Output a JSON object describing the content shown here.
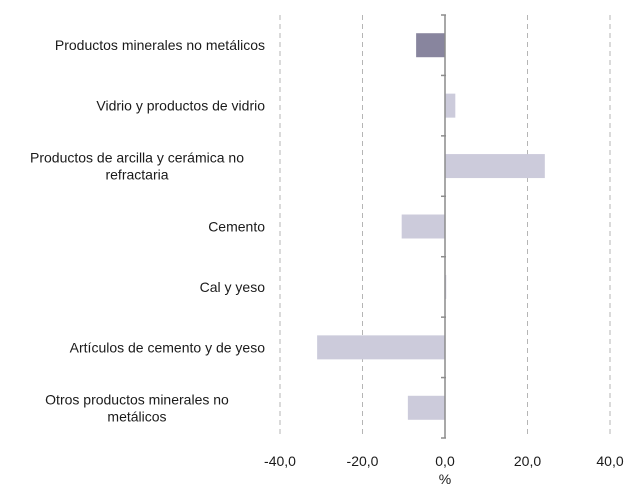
{
  "chart_data": {
    "type": "bar",
    "orientation": "horizontal",
    "categories": [
      "Productos minerales no metálicos",
      "Vidrio y productos de vidrio",
      "Productos de arcilla y cerámica no refractaria",
      "Cemento",
      "Cal y yeso",
      "Artículos de cemento y de yeso",
      "Otros productos minerales no metálicos"
    ],
    "category_lines": [
      [
        "Productos minerales no metálicos"
      ],
      [
        "Vidrio y productos de vidrio"
      ],
      [
        "Productos de arcilla y cerámica no",
        "refractaria"
      ],
      [
        "Cemento"
      ],
      [
        "Cal y yeso"
      ],
      [
        "Artículos de cemento y de yeso"
      ],
      [
        "Otros productos minerales no",
        "metálicos"
      ]
    ],
    "values": [
      -7.0,
      2.5,
      24.2,
      -10.5,
      0.3,
      -31.0,
      -9.0
    ],
    "xlim": [
      -40,
      40
    ],
    "xticks": [
      -40,
      -20,
      0,
      20,
      40
    ],
    "xtick_labels": [
      "-40,0",
      "-20,0",
      "0,0",
      "20,0",
      "40,0"
    ],
    "xlabel": "%",
    "grid": "vertical dashed",
    "colors": {
      "highlight": "#88859e",
      "bar": "#cccbdb",
      "axis": "#8c8c8c",
      "grid": "#b5b5b5"
    },
    "highlight_index": 0
  }
}
